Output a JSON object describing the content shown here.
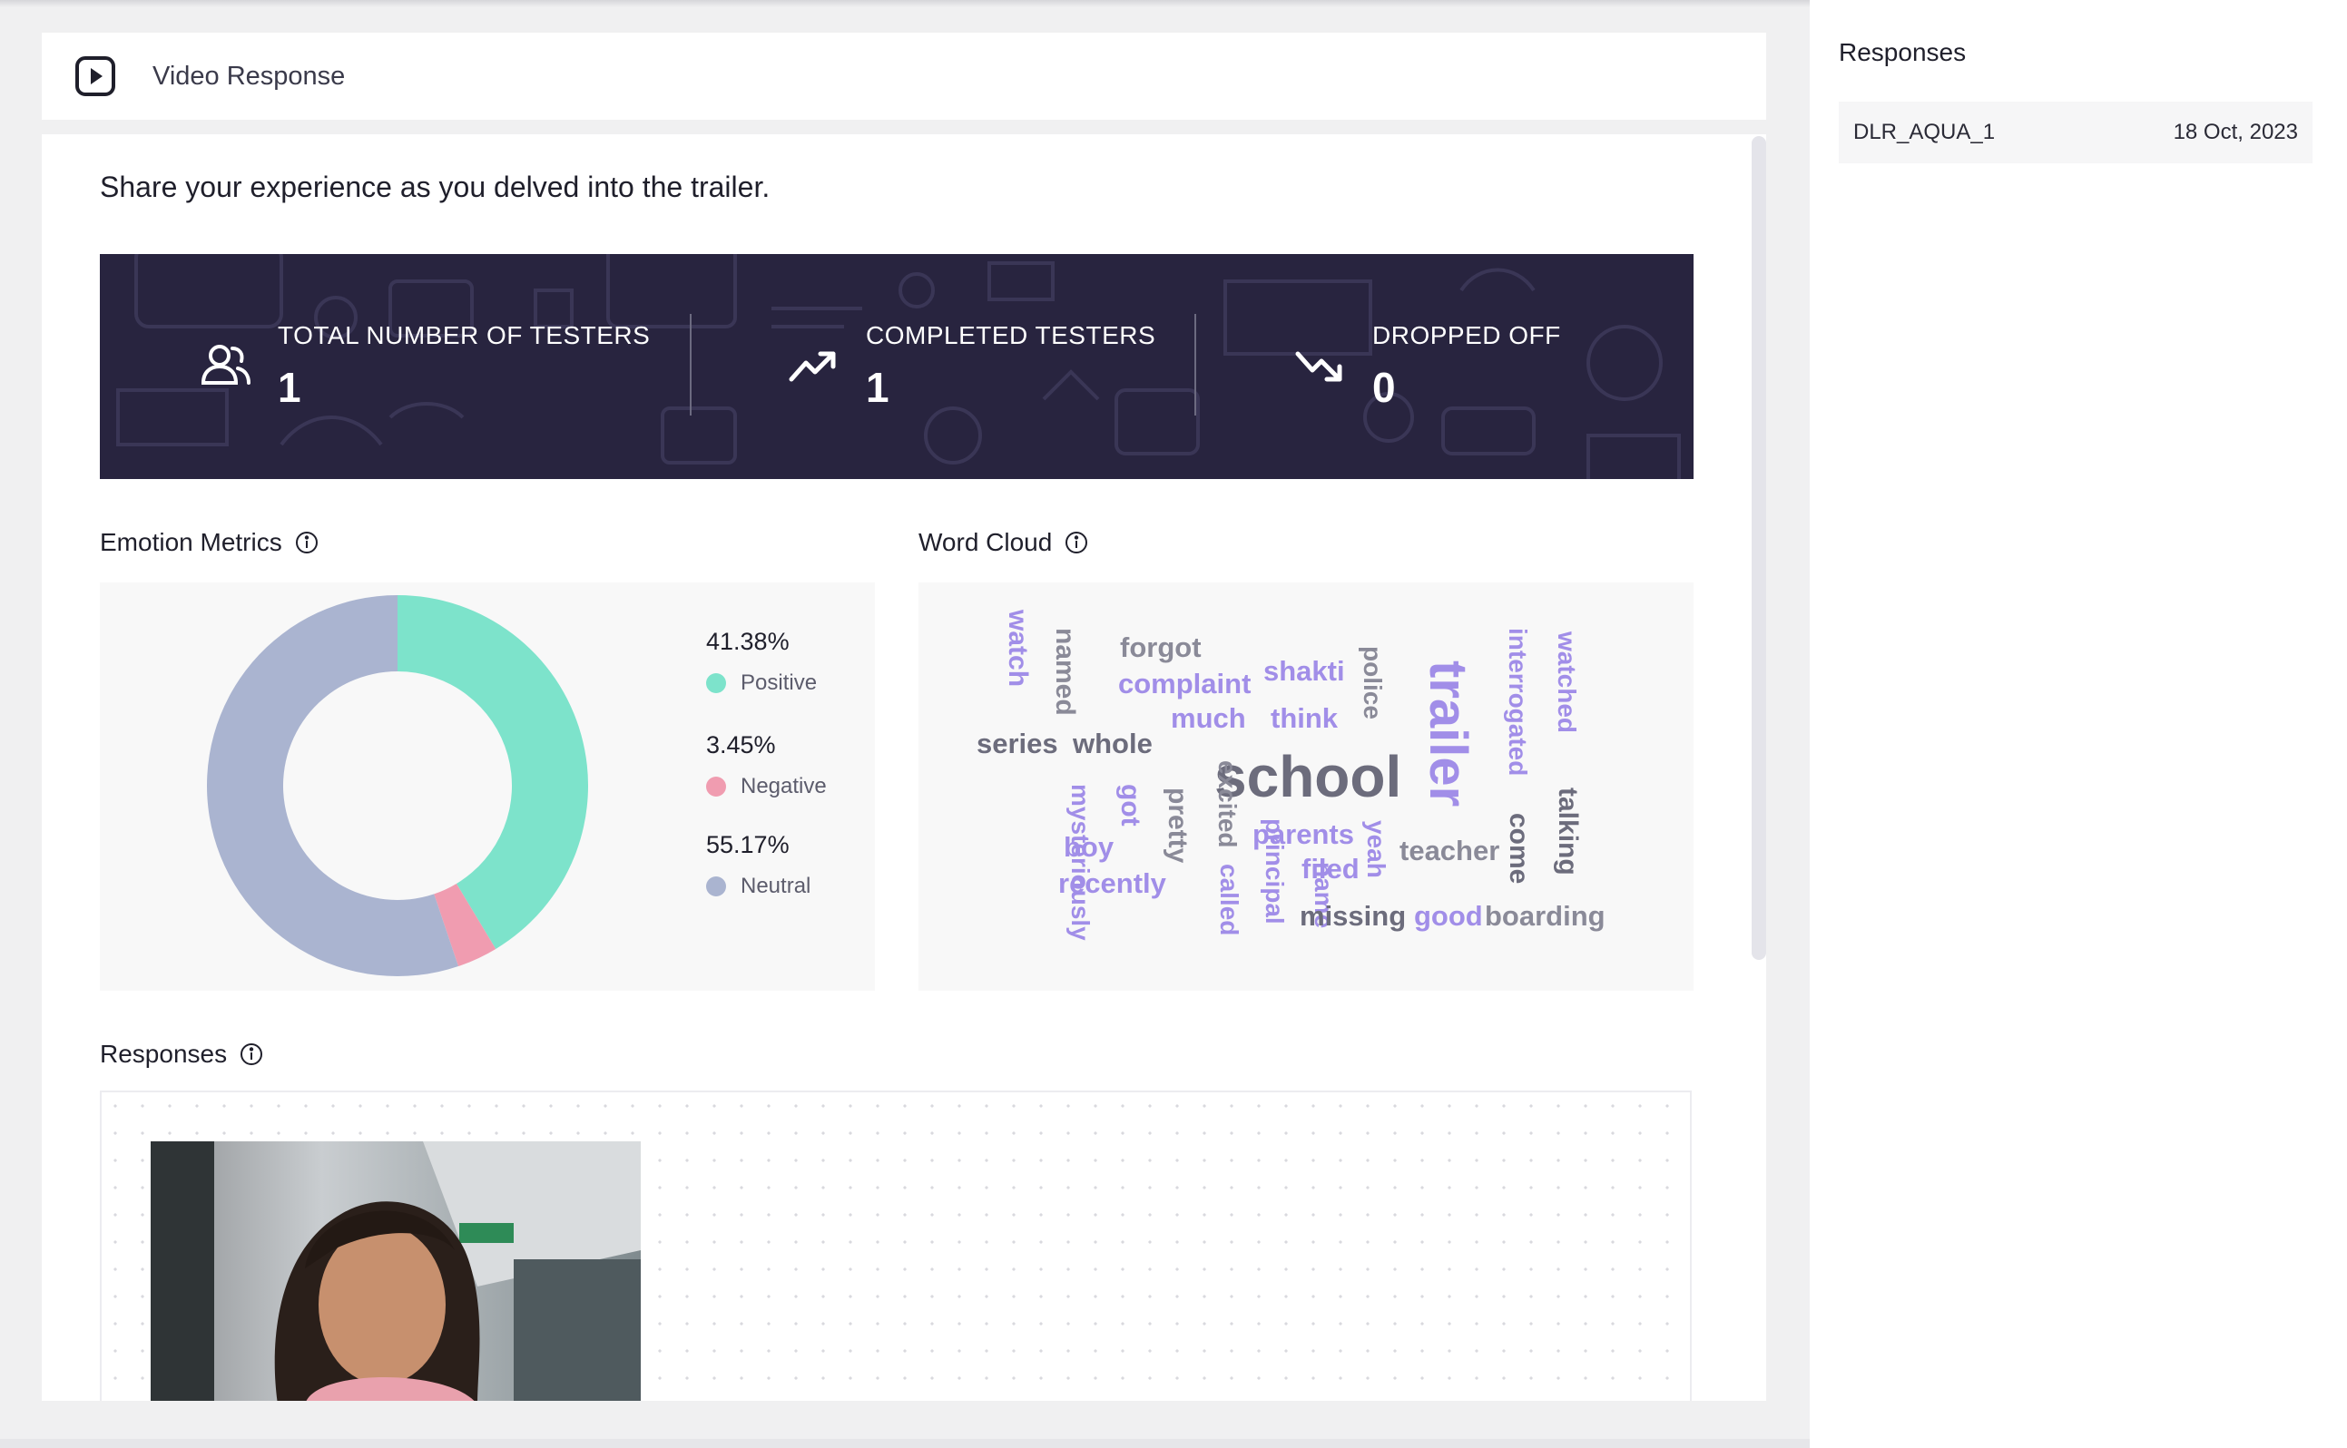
{
  "header": {
    "title": "Video Response"
  },
  "question": "Share your experience as you delved into the trailer.",
  "stats": [
    {
      "label": "TOTAL NUMBER OF TESTERS",
      "value": "1",
      "icon": "users-icon"
    },
    {
      "label": "COMPLETED TESTERS",
      "value": "1",
      "icon": "trend-up-icon"
    },
    {
      "label": "DROPPED OFF",
      "value": "0",
      "icon": "trend-down-icon"
    }
  ],
  "emotion": {
    "title": "Emotion Metrics",
    "chart_data": {
      "type": "pie",
      "categories": [
        "Positive",
        "Negative",
        "Neutral"
      ],
      "values": [
        41.38,
        3.45,
        55.17
      ],
      "colors": [
        "#7de3cb",
        "#f09cb0",
        "#aab4d0"
      ]
    },
    "legend": [
      {
        "pct": "41.38%",
        "name": "Positive",
        "color": "#7de3cb"
      },
      {
        "pct": "3.45%",
        "name": "Negative",
        "color": "#f09cb0"
      },
      {
        "pct": "55.17%",
        "name": "Neutral",
        "color": "#aab4d0"
      }
    ]
  },
  "wordcloud": {
    "title": "Word Cloud",
    "words": {
      "watch": "watch",
      "named": "named",
      "forgot": "forgot",
      "complaint": "complaint",
      "shakti": "shakti",
      "police": "police",
      "trailer": "trailer",
      "interrogated": "interrogated",
      "watched": "watched",
      "much": "much",
      "think": "think",
      "series": "series",
      "whole": "whole",
      "school": "school",
      "mysteriously": "mysteriously",
      "got": "got",
      "pretty": "pretty",
      "excited": "excited",
      "principal": "principal",
      "parents": "parents",
      "yeah": "yeah",
      "teacher": "teacher",
      "come": "come",
      "talking": "talking",
      "boy": "boy",
      "recently": "recently",
      "called": "called",
      "filed": "filed",
      "name": "name",
      "missing": "missing",
      "good": "good",
      "boarding": "boarding"
    }
  },
  "responses": {
    "title": "Responses"
  },
  "sidebar": {
    "title": "Responses",
    "items": [
      {
        "name": "DLR_AQUA_1",
        "date": "18 Oct, 2023"
      }
    ]
  }
}
